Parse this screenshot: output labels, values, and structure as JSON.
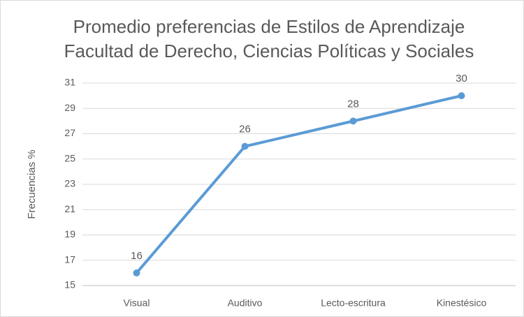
{
  "chart_data": {
    "type": "line",
    "title": "Promedio preferencias de Estilos de Aprendizaje",
    "subtitle": "Facultad de Derecho, Ciencias Políticas y Sociales",
    "y_label": "Frecuencias %",
    "categories": [
      "Visual",
      "Auditivo",
      "Lecto-escritura",
      "Kinestésico"
    ],
    "values": [
      16,
      26,
      28,
      30
    ],
    "color": "#5b9bd5",
    "ylim": [
      15,
      31
    ],
    "yticks": [
      15,
      17,
      19,
      21,
      23,
      25,
      27,
      29,
      31
    ],
    "grid": true
  }
}
